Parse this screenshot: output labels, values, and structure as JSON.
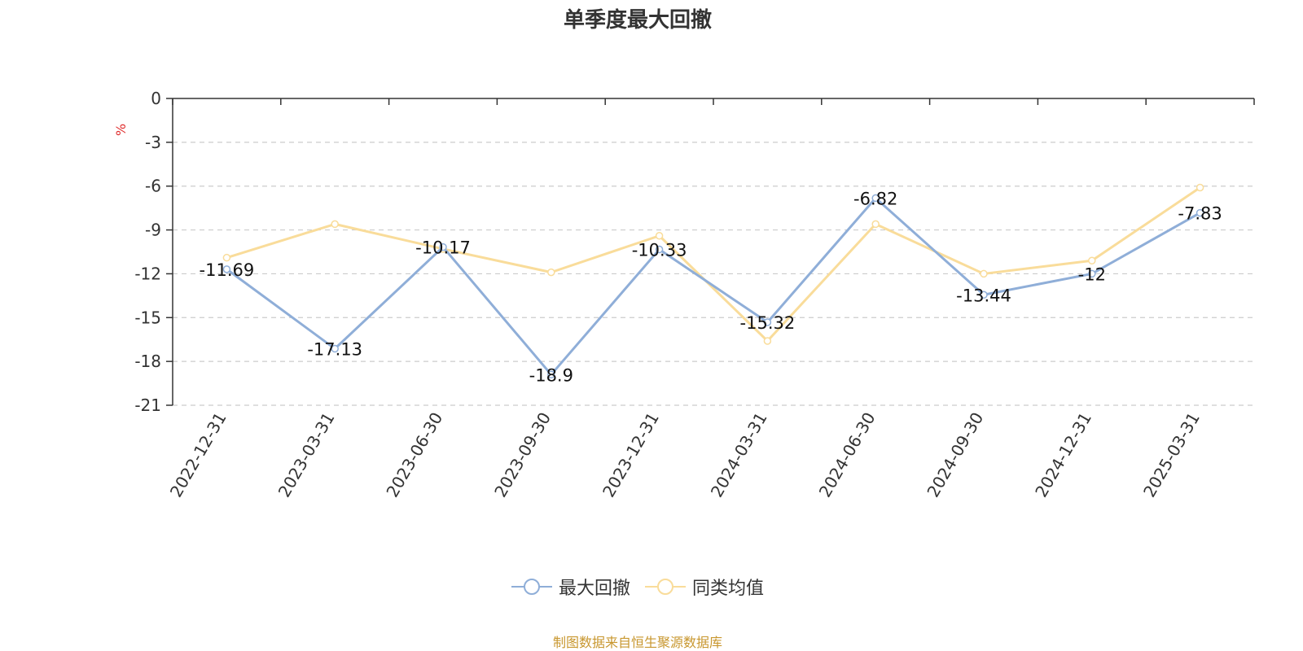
{
  "chart_data": {
    "type": "line",
    "title": "单季度最大回撤",
    "ylabel": "%",
    "ylim": [
      -21,
      0
    ],
    "yticks": [
      0,
      -3,
      -6,
      -9,
      -12,
      -15,
      -18,
      -21
    ],
    "grid": true,
    "legend_position": "bottom",
    "categories": [
      "2022-12-31",
      "2023-03-31",
      "2023-06-30",
      "2023-09-30",
      "2023-12-31",
      "2024-03-31",
      "2024-06-30",
      "2024-09-30",
      "2024-12-31",
      "2025-03-31"
    ],
    "series": [
      {
        "name": "最大回撤",
        "color": "#8faed8",
        "values": [
          -11.69,
          -17.13,
          -10.17,
          -18.9,
          -10.33,
          -15.32,
          -6.82,
          -13.44,
          -12,
          -7.83
        ],
        "labels": [
          "-11.69",
          "-17.13",
          "-10.17",
          "-18.9",
          "-10.33",
          "-15.32",
          "-6.82",
          "-13.44",
          "-12",
          "-7.83"
        ]
      },
      {
        "name": "同类均值",
        "color": "#f9dc9a",
        "values": [
          -10.9,
          -8.6,
          -10.3,
          -11.9,
          -9.4,
          -16.6,
          -8.6,
          -12.0,
          -11.1,
          -6.1
        ]
      }
    ]
  },
  "source": "制图数据来自恒生聚源数据库"
}
